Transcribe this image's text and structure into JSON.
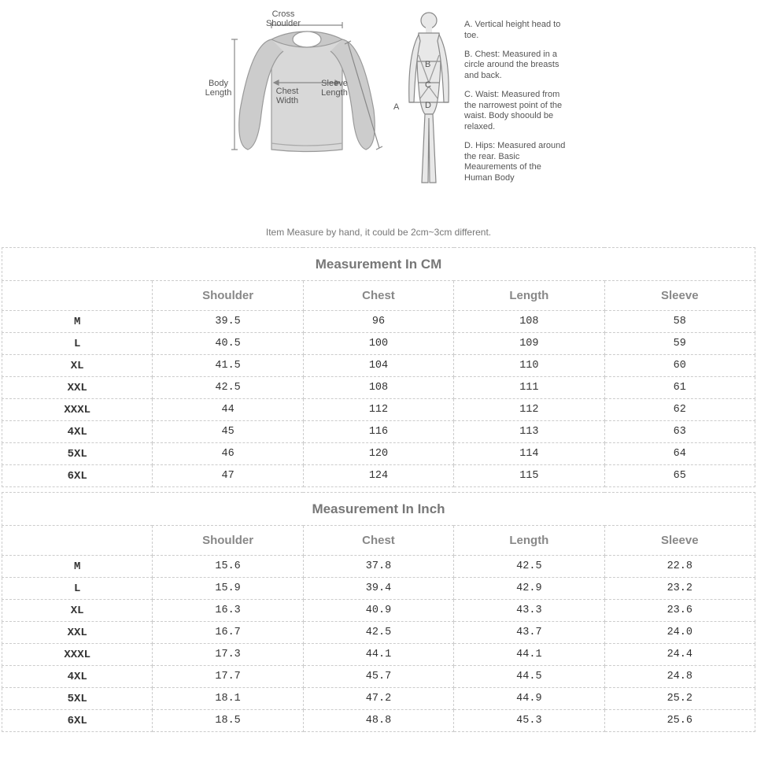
{
  "diagram": {
    "labels": {
      "cross_shoulder": "Cross Shoulder",
      "body_length": "Body Length",
      "chest_width": "Chest Width",
      "sleeve_length": "Sleeve Length"
    },
    "letters": {
      "a": "A",
      "b": "B",
      "c": "C",
      "d": "D"
    },
    "defs": [
      {
        "label": "A.",
        "text": "Vertical height head to toe."
      },
      {
        "label": "B.",
        "text": "Chest: Measured in a circle around the breasts and back."
      },
      {
        "label": "C.",
        "text": "Waist: Measured from the narrowest point of the waist. Body shoould be relaxed."
      },
      {
        "label": "D.",
        "text": "Hips: Measured around the rear. Basic Meaurements of the Human Body"
      }
    ],
    "colors": {
      "stroke": "#888888",
      "fill": "#cccccc",
      "fill_light": "#e0e0e0"
    },
    "note": "Item Measure by hand, it could be 2cm~3cm different."
  },
  "table_cm": {
    "title": "Measurement In CM",
    "columns": [
      "",
      "Shoulder",
      "Chest",
      "Length",
      "Sleeve"
    ],
    "rows": [
      [
        "M",
        "39.5",
        "96",
        "108",
        "58"
      ],
      [
        "L",
        "40.5",
        "100",
        "109",
        "59"
      ],
      [
        "XL",
        "41.5",
        "104",
        "110",
        "60"
      ],
      [
        "XXL",
        "42.5",
        "108",
        "111",
        "61"
      ],
      [
        "XXXL",
        "44",
        "112",
        "112",
        "62"
      ],
      [
        "4XL",
        "45",
        "116",
        "113",
        "63"
      ],
      [
        "5XL",
        "46",
        "120",
        "114",
        "64"
      ],
      [
        "6XL",
        "47",
        "124",
        "115",
        "65"
      ]
    ]
  },
  "table_inch": {
    "title": "Measurement In Inch",
    "columns": [
      "",
      "Shoulder",
      "Chest",
      "Length",
      "Sleeve"
    ],
    "rows": [
      [
        "M",
        "15.6",
        "37.8",
        "42.5",
        "22.8"
      ],
      [
        "L",
        "15.9",
        "39.4",
        "42.9",
        "23.2"
      ],
      [
        "XL",
        "16.3",
        "40.9",
        "43.3",
        "23.6"
      ],
      [
        "XXL",
        "16.7",
        "42.5",
        "43.7",
        "24.0"
      ],
      [
        "XXXL",
        "17.3",
        "44.1",
        "44.1",
        "24.4"
      ],
      [
        "4XL",
        "17.7",
        "45.7",
        "44.5",
        "24.8"
      ],
      [
        "5XL",
        "18.1",
        "47.2",
        "44.9",
        "25.2"
      ],
      [
        "6XL",
        "18.5",
        "48.8",
        "45.3",
        "25.6"
      ]
    ]
  },
  "style": {
    "background_color": "#ffffff",
    "border_color": "#cccccc",
    "title_color": "#777777",
    "header_color": "#888888",
    "data_color": "#333333",
    "note_color": "#777777"
  }
}
